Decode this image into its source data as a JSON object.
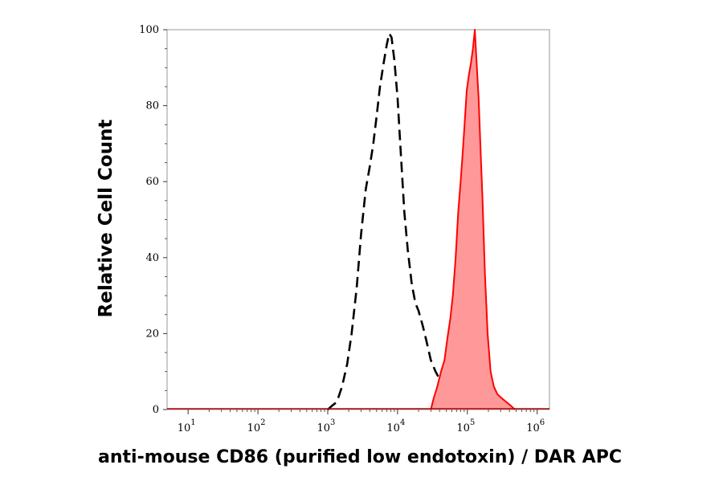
{
  "chart_data": {
    "type": "area",
    "title": "",
    "xlabel": "anti-mouse CD86 (purified low endotoxin) / DAR APC",
    "ylabel": "Relative Cell Count",
    "x_scale": "log",
    "xlim": [
      5,
      1500000
    ],
    "ylim": [
      0,
      100
    ],
    "x_ticks": [
      {
        "value": 10,
        "base": "10",
        "exp": "1"
      },
      {
        "value": 100,
        "base": "10",
        "exp": "2"
      },
      {
        "value": 1000,
        "base": "10",
        "exp": "3"
      },
      {
        "value": 10000,
        "base": "10",
        "exp": "4"
      },
      {
        "value": 100000,
        "base": "10",
        "exp": "5"
      },
      {
        "value": 1000000,
        "base": "10",
        "exp": "6"
      }
    ],
    "y_ticks": [
      "0",
      "20",
      "40",
      "60",
      "80",
      "100"
    ],
    "grid": false,
    "legend": "none",
    "series": [
      {
        "style": "dashed-outline",
        "color": "#000000",
        "points": [
          [
            1000,
            0
          ],
          [
            1150,
            1
          ],
          [
            1350,
            2
          ],
          [
            1600,
            6
          ],
          [
            1900,
            12
          ],
          [
            2200,
            20
          ],
          [
            2600,
            32
          ],
          [
            3000,
            46
          ],
          [
            3500,
            58
          ],
          [
            4000,
            64
          ],
          [
            4500,
            70
          ],
          [
            5000,
            77
          ],
          [
            5600,
            85
          ],
          [
            6300,
            91
          ],
          [
            7000,
            96
          ],
          [
            7600,
            99
          ],
          [
            8200,
            98
          ],
          [
            9000,
            92
          ],
          [
            10000,
            82
          ],
          [
            11000,
            69
          ],
          [
            12500,
            52
          ],
          [
            14000,
            42
          ],
          [
            16000,
            33
          ],
          [
            18000,
            28
          ],
          [
            20000,
            26
          ],
          [
            23000,
            22
          ],
          [
            26000,
            18
          ],
          [
            30000,
            13
          ],
          [
            35000,
            10
          ],
          [
            40000,
            8
          ],
          [
            45000,
            5
          ],
          [
            50000,
            2
          ],
          [
            55000,
            0
          ]
        ]
      },
      {
        "style": "filled",
        "color": "#ff0000",
        "fill": "#ff9999",
        "points": [
          [
            30000,
            0
          ],
          [
            33000,
            3
          ],
          [
            37000,
            6
          ],
          [
            42000,
            10
          ],
          [
            47000,
            13
          ],
          [
            52000,
            19
          ],
          [
            57000,
            24
          ],
          [
            62000,
            30
          ],
          [
            68000,
            40
          ],
          [
            74000,
            52
          ],
          [
            80000,
            60
          ],
          [
            86000,
            68
          ],
          [
            92000,
            76
          ],
          [
            98000,
            84
          ],
          [
            105000,
            88
          ],
          [
            112000,
            91
          ],
          [
            120000,
            95
          ],
          [
            128000,
            100
          ],
          [
            135000,
            92
          ],
          [
            145000,
            82
          ],
          [
            155000,
            68
          ],
          [
            165000,
            55
          ],
          [
            178000,
            36
          ],
          [
            195000,
            20
          ],
          [
            215000,
            10
          ],
          [
            240000,
            6
          ],
          [
            270000,
            4
          ],
          [
            310000,
            3
          ],
          [
            360000,
            2
          ],
          [
            420000,
            1
          ],
          [
            480000,
            0
          ]
        ]
      }
    ]
  }
}
